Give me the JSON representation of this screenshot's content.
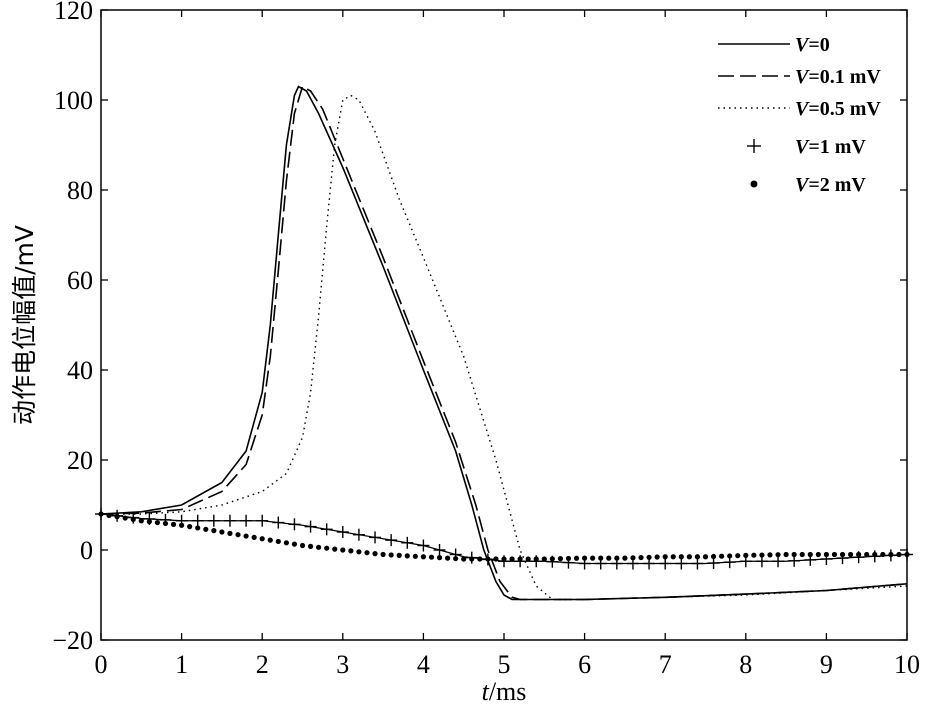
{
  "chart_data": {
    "type": "line",
    "title": "",
    "xlabel_italic": "t",
    "xlabel_rest": "/ms",
    "ylabel": "动作电位幅值/mV",
    "xlim": [
      0,
      10
    ],
    "ylim": [
      -20,
      120
    ],
    "xticks": [
      0,
      1,
      2,
      3,
      4,
      5,
      6,
      7,
      8,
      9,
      10
    ],
    "yticks": [
      -20,
      0,
      20,
      40,
      60,
      80,
      100,
      120
    ],
    "xtick_labels": [
      "0",
      "1",
      "2",
      "3",
      "4",
      "5",
      "6",
      "7",
      "8",
      "9",
      "10"
    ],
    "ytick_labels": [
      "−20",
      "0",
      "20",
      "40",
      "60",
      "80",
      "100",
      "120"
    ],
    "grid": false,
    "legend_position": "top-right",
    "series": [
      {
        "name": "V=0",
        "legend_italic": "V",
        "legend_rest": "=0",
        "style": "solid",
        "x": [
          0,
          0.5,
          1.0,
          1.5,
          1.8,
          2.0,
          2.1,
          2.2,
          2.3,
          2.4,
          2.45,
          2.55,
          2.7,
          3.0,
          3.5,
          4.0,
          4.4,
          4.6,
          4.75,
          4.9,
          5.0,
          5.1,
          5.5,
          6.0,
          7.0,
          8.0,
          9.0,
          10.0
        ],
        "y": [
          8,
          8.5,
          10,
          15,
          22,
          35,
          50,
          70,
          90,
          101,
          103,
          102,
          97,
          85,
          63,
          40,
          22,
          10,
          0,
          -7,
          -10,
          -11,
          -11,
          -11,
          -10.5,
          -9.8,
          -9,
          -7.5
        ]
      },
      {
        "name": "V=0.1 mV",
        "legend_italic": "V",
        "legend_rest": "=0.1 mV",
        "style": "dashed",
        "x": [
          0,
          0.5,
          1.0,
          1.5,
          1.8,
          2.0,
          2.1,
          2.2,
          2.3,
          2.4,
          2.5,
          2.6,
          2.75,
          3.0,
          3.5,
          4.0,
          4.4,
          4.65,
          4.8,
          4.95,
          5.1,
          5.2,
          5.5,
          6.0,
          7.0,
          8.0,
          9.0,
          10.0
        ],
        "y": [
          8,
          8.2,
          9,
          13,
          19,
          30,
          43,
          62,
          82,
          97,
          103,
          102,
          98,
          87,
          65,
          42,
          24,
          10,
          0,
          -7,
          -10.5,
          -11,
          -11,
          -11,
          -10.5,
          -9.8,
          -9,
          -7.5
        ]
      },
      {
        "name": "V=0.5 mV",
        "legend_italic": "V",
        "legend_rest": "=0.5 mV",
        "style": "dotted",
        "x": [
          0,
          0.5,
          1.0,
          1.5,
          2.0,
          2.3,
          2.5,
          2.6,
          2.7,
          2.8,
          2.9,
          3.0,
          3.1,
          3.2,
          3.4,
          3.7,
          4.0,
          4.5,
          4.9,
          5.2,
          5.4,
          5.6,
          5.8,
          6.0,
          7.0,
          8.0,
          9.0,
          10.0
        ],
        "y": [
          8,
          8,
          8.5,
          10,
          13,
          17,
          25,
          35,
          52,
          72,
          90,
          100,
          101,
          100,
          93,
          78,
          65,
          43,
          20,
          0,
          -8,
          -11,
          -11,
          -11,
          -10.5,
          -10,
          -9,
          -8
        ]
      },
      {
        "name": "V=1 mV",
        "legend_italic": "V",
        "legend_rest": "=1 mV",
        "style": "plus",
        "x": [
          0,
          0.5,
          1.0,
          1.5,
          2.0,
          2.5,
          3.0,
          3.5,
          4.0,
          4.5,
          5.0,
          5.5,
          6.0,
          6.5,
          7.0,
          7.5,
          8.0,
          8.5,
          9.0,
          9.5,
          10.0
        ],
        "y": [
          8,
          7,
          6.5,
          6.5,
          6.5,
          5.5,
          4,
          2.5,
          1,
          -1.5,
          -2.5,
          -2.5,
          -3,
          -3,
          -3,
          -3,
          -2.5,
          -2.5,
          -2,
          -1.5,
          -1
        ]
      },
      {
        "name": "V=2 mV",
        "legend_italic": "V",
        "legend_rest": "=2 mV",
        "style": "dot",
        "x": [
          0,
          0.5,
          1.0,
          1.5,
          2.0,
          2.5,
          3.0,
          3.5,
          4.0,
          4.5,
          5.0,
          5.5,
          6.0,
          6.5,
          7.0,
          7.5,
          8.0,
          8.5,
          9.0,
          9.5,
          10.0
        ],
        "y": [
          8,
          6.5,
          5.5,
          4,
          2.5,
          1,
          0,
          -1,
          -1.5,
          -2,
          -2,
          -2,
          -1.8,
          -1.8,
          -1.5,
          -1.5,
          -1.2,
          -1,
          -1,
          -1,
          -1
        ]
      }
    ]
  }
}
